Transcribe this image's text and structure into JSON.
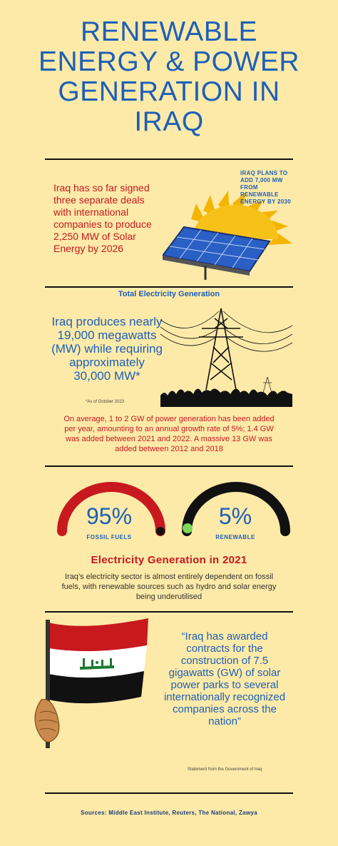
{
  "title": {
    "line1": "RENEWABLE",
    "line2": "ENERGY & POWER",
    "line3": "GENERATION IN",
    "line4": "IRAQ"
  },
  "solar": {
    "deals_text": "Iraq has so far signed three separate deals with international companies to produce 2,250 MW of Solar Energy by 2026",
    "plans_text": "IRAQ PLANS TO ADD 7,000 MW FROM RENEWABLE ENERGY BY 2030"
  },
  "total": {
    "heading": "Total Electricity Generation",
    "produces_text": "Iraq produces nearly 19,000 megawatts (MW) while requiring approximately 30,000 MW*",
    "as_of": "*As of October 2023",
    "average_text": "On average, 1 to 2 GW of power generation has been added per year, amounting to an annual growth rate of 5%; 1.4 GW was added between 2021 and 2022. A massive 13 GW was added between 2012 and 2018"
  },
  "mix": {
    "fossil_pct": "95%",
    "fossil_label": "FOSSIL FUELS",
    "fossil_fraction": 0.95,
    "renewable_pct": "5%",
    "renewable_label": "RENEWABLE",
    "renewable_fraction": 0.05,
    "heading": "Electricity Generation in 2021",
    "dependence_text": "Iraq’s electricity sector is almost entirely dependent on fossil fuels, with renewable sources such as hydro and solar energy being underutilised"
  },
  "quote": {
    "text": "“Iraq has awarded contracts for the construction of 7.5 gigawatts (GW) of solar power parks to several internationally recognized companies across the nation”",
    "attribution": "Statement from the Government of Iraq"
  },
  "sources": "Sources: Middle East Institute, Reuters, The National, Zawya",
  "colors": {
    "background": "#fdeaa8",
    "blue": "#1d5fb8",
    "red": "#c8191f",
    "green": "#7ed957"
  }
}
